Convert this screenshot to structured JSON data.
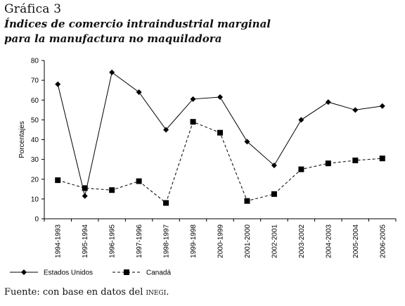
{
  "figure": {
    "label": "Gráfica 3",
    "title_line1": "Índices de comercio intraindustrial marginal",
    "title_line2": "para la manufactura no maquiladora",
    "source_prefix": "Fuente: con base en datos del ",
    "source_org": "inegi",
    "source_suffix": "."
  },
  "chart_data": {
    "type": "line",
    "title": "Índices de comercio intraindustrial marginal para la manufactura no maquiladora",
    "xlabel": "",
    "ylabel": "Porcentajes",
    "ylim": [
      0,
      80
    ],
    "yticks": [
      0,
      10,
      20,
      30,
      40,
      50,
      60,
      70,
      80
    ],
    "grid": false,
    "legend_position": "bottom",
    "categories": [
      "1994-1993",
      "1995-1994",
      "1996-1995",
      "1997-1996",
      "1998-1997",
      "1999-1998",
      "2000-1999",
      "2001-2000",
      "2002-2001",
      "2003-2002",
      "2004-2003",
      "2005-2004",
      "2006-2005"
    ],
    "series": [
      {
        "name": "Estados Unidos",
        "marker": "diamond",
        "line": "solid",
        "color": "#000000",
        "values": [
          68,
          11.5,
          74,
          64,
          45,
          60.5,
          61.5,
          39,
          27,
          50,
          59,
          55,
          57
        ]
      },
      {
        "name": "Canadá",
        "marker": "square",
        "line": "dashed",
        "color": "#000000",
        "values": [
          19.5,
          15.5,
          14.5,
          19,
          8,
          49,
          43.5,
          9,
          12.5,
          25,
          28,
          29.5,
          30.5
        ]
      }
    ]
  }
}
